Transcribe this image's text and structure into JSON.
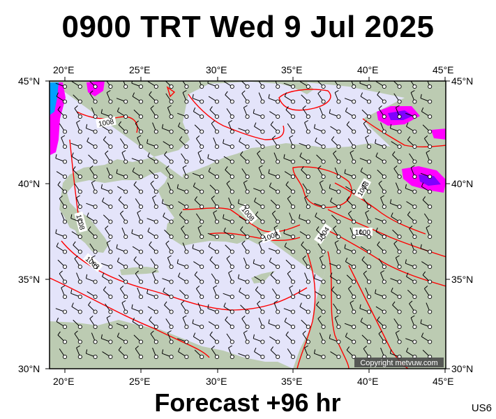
{
  "title": "0900 TRT Wed 9 Jul 2025",
  "footer": "Forecast +96 hr",
  "model_code": "US6",
  "copyright": "Copyright metvuw.com",
  "lon_ticks": [
    "20°E",
    "25°E",
    "30°E",
    "35°E",
    "40°E",
    "45°E"
  ],
  "lat_ticks": [
    "45°N",
    "40°N",
    "35°N",
    "30°N"
  ],
  "isobar_labels": [
    "1008",
    "1008",
    "1008",
    "1008",
    "1008",
    "1008",
    "1004",
    "1000"
  ],
  "colors": {
    "sea": "#e4e4fa",
    "land": "#bccbb2",
    "isobar": "#ff0000",
    "rain_heavy": "#ff00ff",
    "rain_extreme": "#8000ff",
    "rain_cyan": "#00c8ff",
    "wind_barb": "#000000"
  }
}
